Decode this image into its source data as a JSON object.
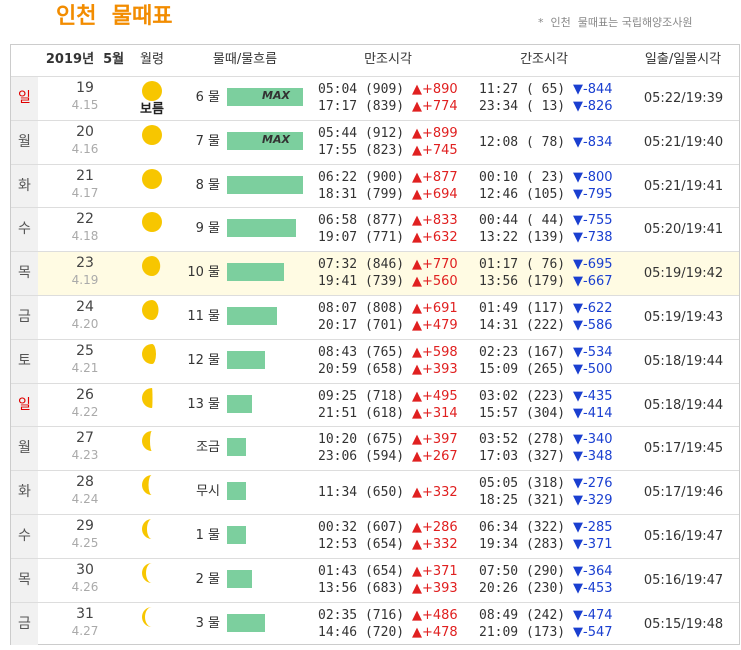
{
  "header": {
    "title": "인천  물때표",
    "note": "*  인천  물때표는 국립해양조사원"
  },
  "table": {
    "columns": [
      "2019년  5월",
      "월령",
      "물때/물흐름",
      "만조시각",
      "간조시각",
      "일출/일몰시각"
    ],
    "rows": [
      {
        "day": "일",
        "date": 19,
        "lunar": "4.15",
        "moon_label": "보름",
        "tide": "6 물",
        "max": "MAX",
        "bar": 100,
        "high": [
          {
            "time_height": "05:04 (909)",
            "diff": "▲+890"
          },
          {
            "time_height": "17:17 (839)",
            "diff": "▲+774"
          }
        ],
        "low": [
          {
            "time_height": "11:27 ( 65)",
            "diff": "▼-844"
          },
          {
            "time_height": "23:34 ( 13)",
            "diff": "▼-826"
          }
        ],
        "sun": "05:22/19:39"
      },
      {
        "day": "월",
        "date": 20,
        "lunar": "4.16",
        "tide": "7 물",
        "max": "MAX",
        "bar": 100,
        "high": [
          {
            "time_height": "05:44 (912)",
            "diff": "▲+899"
          },
          {
            "time_height": "17:55 (823)",
            "diff": "▲+745"
          }
        ],
        "low": [
          {
            "time_height": "12:08 ( 78)",
            "diff": "▼-834"
          }
        ],
        "sun": "05:21/19:40"
      },
      {
        "day": "화",
        "date": 21,
        "lunar": "4.17",
        "tide": "8 물",
        "bar": 100,
        "high": [
          {
            "time_height": "06:22 (900)",
            "diff": "▲+877"
          },
          {
            "time_height": "18:31 (799)",
            "diff": "▲+694"
          }
        ],
        "low": [
          {
            "time_height": "00:10 ( 23)",
            "diff": "▼-800"
          },
          {
            "time_height": "12:46 (105)",
            "diff": "▼-795"
          }
        ],
        "sun": "05:21/19:41"
      },
      {
        "day": "수",
        "date": 22,
        "lunar": "4.18",
        "tide": "9 물",
        "bar": 91,
        "high": [
          {
            "time_height": "06:58 (877)",
            "diff": "▲+833"
          },
          {
            "time_height": "19:07 (771)",
            "diff": "▲+632"
          }
        ],
        "low": [
          {
            "time_height": "00:44 ( 44)",
            "diff": "▼-755"
          },
          {
            "time_height": "13:22 (139)",
            "diff": "▼-738"
          }
        ],
        "sun": "05:20/19:41"
      },
      {
        "day": "목",
        "date": 23,
        "lunar": "4.19",
        "tide": "10 물",
        "bar": 75,
        "high": [
          {
            "time_height": "07:32 (846)",
            "diff": "▲+770"
          },
          {
            "time_height": "19:41 (739)",
            "diff": "▲+560"
          }
        ],
        "low": [
          {
            "time_height": "01:17 ( 76)",
            "diff": "▼-695"
          },
          {
            "time_height": "13:56 (179)",
            "diff": "▼-667"
          }
        ],
        "sun": "05:19/19:42"
      },
      {
        "day": "금",
        "date": 24,
        "lunar": "4.20",
        "tide": "11 물",
        "bar": 66,
        "high": [
          {
            "time_height": "08:07 (808)",
            "diff": "▲+691"
          },
          {
            "time_height": "20:17 (701)",
            "diff": "▲+479"
          }
        ],
        "low": [
          {
            "time_height": "01:49 (117)",
            "diff": "▼-622"
          },
          {
            "time_height": "14:31 (222)",
            "diff": "▼-586"
          }
        ],
        "sun": "05:19/19:43"
      },
      {
        "day": "토",
        "date": 25,
        "lunar": "4.21",
        "tide": "12 물",
        "bar": 50,
        "high": [
          {
            "time_height": "08:43 (765)",
            "diff": "▲+598"
          },
          {
            "time_height": "20:59 (658)",
            "diff": "▲+393"
          }
        ],
        "low": [
          {
            "time_height": "02:23 (167)",
            "diff": "▼-534"
          },
          {
            "time_height": "15:09 (265)",
            "diff": "▼-500"
          }
        ],
        "sun": "05:18/19:44"
      },
      {
        "day": "일",
        "date": 26,
        "lunar": "4.22",
        "tide": "13 물",
        "bar": 33,
        "high": [
          {
            "time_height": "09:25 (718)",
            "diff": "▲+495"
          },
          {
            "time_height": "21:51 (618)",
            "diff": "▲+314"
          }
        ],
        "low": [
          {
            "time_height": "03:02 (223)",
            "diff": "▼-435"
          },
          {
            "time_height": "15:57 (304)",
            "diff": "▼-414"
          }
        ],
        "sun": "05:18/19:44"
      },
      {
        "day": "월",
        "date": 27,
        "lunar": "4.23",
        "tide": "조금",
        "bar": 25,
        "high": [
          {
            "time_height": "10:20 (675)",
            "diff": "▲+397"
          },
          {
            "time_height": "23:06 (594)",
            "diff": "▲+267"
          }
        ],
        "low": [
          {
            "time_height": "03:52 (278)",
            "diff": "▼-340"
          },
          {
            "time_height": "17:03 (327)",
            "diff": "▼-348"
          }
        ],
        "sun": "05:17/19:45"
      },
      {
        "day": "화",
        "date": 28,
        "lunar": "4.24",
        "tide": "무시",
        "bar": 25,
        "high": [
          {
            "time_height": "11:34 (650)",
            "diff": "▲+332"
          }
        ],
        "low": [
          {
            "time_height": "05:05 (318)",
            "diff": "▼-276"
          },
          {
            "time_height": "18:25 (321)",
            "diff": "▼-329"
          }
        ],
        "sun": "05:17/19:46"
      },
      {
        "day": "수",
        "date": 29,
        "lunar": "4.25",
        "tide": "1 물",
        "bar": 25,
        "high": [
          {
            "time_height": "00:32 (607)",
            "diff": "▲+286"
          },
          {
            "time_height": "12:53 (654)",
            "diff": "▲+332"
          }
        ],
        "low": [
          {
            "time_height": "06:34 (322)",
            "diff": "▼-285"
          },
          {
            "time_height": "19:34 (283)",
            "diff": "▼-371"
          }
        ],
        "sun": "05:16/19:47"
      },
      {
        "day": "목",
        "date": 30,
        "lunar": "4.26",
        "tide": "2 물",
        "bar": 33,
        "high": [
          {
            "time_height": "01:43 (654)",
            "diff": "▲+371"
          },
          {
            "time_height": "13:56 (683)",
            "diff": "▲+393"
          }
        ],
        "low": [
          {
            "time_height": "07:50 (290)",
            "diff": "▼-364"
          },
          {
            "time_height": "20:26 (230)",
            "diff": "▼-453"
          }
        ],
        "sun": "05:16/19:47"
      },
      {
        "day": "금",
        "date": 31,
        "lunar": "4.27",
        "tide": "3 물",
        "bar": 50,
        "high": [
          {
            "time_height": "02:35 (716)",
            "diff": "▲+486"
          },
          {
            "time_height": "14:46 (720)",
            "diff": "▲+478"
          }
        ],
        "low": [
          {
            "time_height": "08:49 (242)",
            "diff": "▼-474"
          },
          {
            "time_height": "21:09 (173)",
            "diff": "▼-547"
          }
        ],
        "sun": "05:15/19:48"
      }
    ]
  }
}
